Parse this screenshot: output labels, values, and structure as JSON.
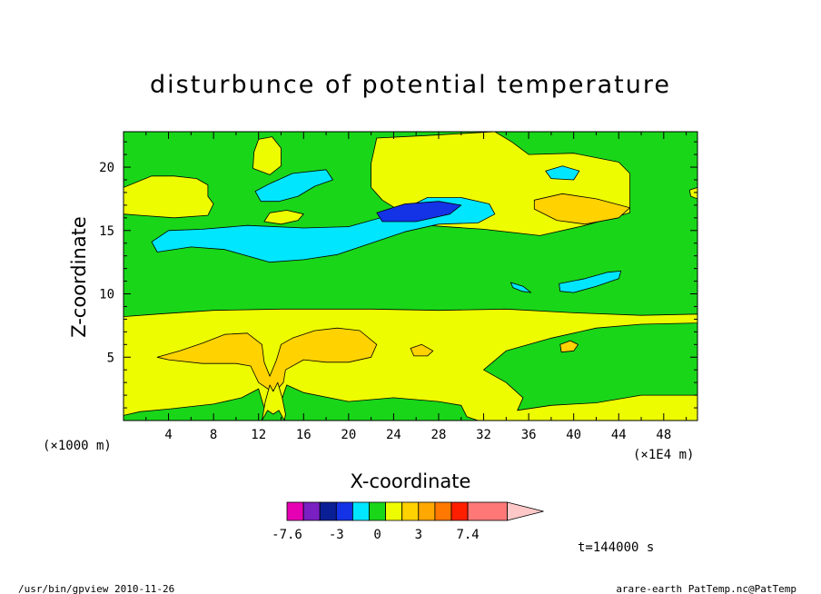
{
  "chart_data": {
    "type": "heatmap",
    "title": "disturbunce of potential temperature",
    "xlabel": "X-coordinate",
    "ylabel": "Z-coordinate",
    "x_unit": "(×1E4 m)",
    "y_unit": "(×1000 m)",
    "xlim": [
      0,
      51
    ],
    "ylim": [
      0,
      22.8
    ],
    "x_ticks": [
      4,
      8,
      12,
      16,
      20,
      24,
      28,
      32,
      36,
      40,
      44,
      48
    ],
    "y_ticks": [
      5,
      10,
      15,
      20
    ],
    "time_label": "t=144000 s",
    "colorbar": {
      "labels": [
        "-7.6",
        "-3",
        "0",
        "3",
        "7.4"
      ],
      "label_values": [
        -7.6,
        -3,
        0,
        3,
        7.4
      ],
      "levels": [
        -7.6,
        -5.4,
        -4.2,
        -3,
        -1.8,
        -0.6,
        0.6,
        1.8,
        3,
        4.2,
        5.4,
        7.4
      ],
      "colors": [
        "#e600b4",
        "#7a1fc2",
        "#0a1e96",
        "#1432e6",
        "#00e6ff",
        "#19d619",
        "#eefc00",
        "#ffd200",
        "#ffa800",
        "#ff7800",
        "#ff1e00",
        "#ff7878",
        "#ffc8c8"
      ]
    },
    "background_color": "#19d619",
    "regions": [
      {
        "level": "0 to 0.6",
        "color": "#eefc00",
        "points": [
          [
            0,
            0.4
          ],
          [
            1.5,
            0.7
          ],
          [
            4,
            0.9
          ],
          [
            8,
            1.3
          ],
          [
            10.5,
            1.8
          ],
          [
            12,
            2.5
          ],
          [
            12.5,
            1
          ],
          [
            13.8,
            1
          ],
          [
            14.5,
            2.8
          ],
          [
            16,
            2.2
          ],
          [
            20,
            1.5
          ],
          [
            24,
            1.8
          ],
          [
            28,
            1.5
          ],
          [
            30,
            1.2
          ],
          [
            30.5,
            0.3
          ],
          [
            31.5,
            0
          ],
          [
            51,
            0
          ],
          [
            51,
            2
          ],
          [
            46,
            2
          ],
          [
            42,
            1.4
          ],
          [
            38,
            1.2
          ],
          [
            35,
            0.8
          ],
          [
            35.5,
            1.8
          ],
          [
            34,
            3
          ],
          [
            32,
            4
          ],
          [
            34,
            5.5
          ],
          [
            38,
            6.5
          ],
          [
            42,
            7.3
          ],
          [
            46,
            7.6
          ],
          [
            51,
            7.7
          ],
          [
            51,
            8.4
          ],
          [
            46,
            8.3
          ],
          [
            40,
            8.5
          ],
          [
            34,
            8.8
          ],
          [
            28,
            8.7
          ],
          [
            22,
            8.8
          ],
          [
            14,
            8.8
          ],
          [
            8,
            8.7
          ],
          [
            3,
            8.4
          ],
          [
            0,
            8.2
          ]
        ]
      },
      {
        "level": "0.6 to 1.8",
        "color": "#ffd200",
        "points": [
          [
            3,
            5
          ],
          [
            5,
            5.5
          ],
          [
            7,
            6.1
          ],
          [
            9,
            6.8
          ],
          [
            11,
            6.9
          ],
          [
            12.3,
            6
          ],
          [
            12.5,
            4.6
          ],
          [
            13,
            3.5
          ],
          [
            13.6,
            4.8
          ],
          [
            14,
            6
          ],
          [
            15,
            6.5
          ],
          [
            17,
            7.1
          ],
          [
            19,
            7.3
          ],
          [
            21,
            7.1
          ],
          [
            22.5,
            6
          ],
          [
            22,
            5
          ],
          [
            20,
            4.6
          ],
          [
            18,
            4.6
          ],
          [
            16,
            4.8
          ],
          [
            14.4,
            4
          ],
          [
            14.2,
            3
          ],
          [
            13.6,
            2.4
          ],
          [
            13,
            2.4
          ],
          [
            12,
            3
          ],
          [
            11.3,
            4.3
          ],
          [
            10,
            4.5
          ],
          [
            7,
            4.5
          ],
          [
            4,
            4.8
          ]
        ]
      },
      {
        "level": "0 to 0.6",
        "color": "#eefc00",
        "points": [
          [
            22.5,
            22.3
          ],
          [
            27,
            22.5
          ],
          [
            33,
            22.8
          ],
          [
            34.5,
            22
          ],
          [
            36,
            21
          ],
          [
            40,
            21.1
          ],
          [
            44,
            20.4
          ],
          [
            45,
            19.5
          ],
          [
            45,
            16.4
          ],
          [
            41,
            15.4
          ],
          [
            37,
            14.6
          ],
          [
            32,
            15.1
          ],
          [
            27,
            15.4
          ],
          [
            25,
            16.3
          ],
          [
            23,
            17.4
          ],
          [
            22,
            18.4
          ],
          [
            22,
            20.3
          ]
        ]
      },
      {
        "level": "0 to 0.6",
        "color": "#eefc00",
        "points": [
          [
            0,
            16.3
          ],
          [
            1.5,
            16.2
          ],
          [
            4.5,
            16
          ],
          [
            7.5,
            16.2
          ],
          [
            8,
            17.1
          ],
          [
            7.5,
            17.7
          ],
          [
            7.5,
            18.6
          ],
          [
            6.5,
            19.1
          ],
          [
            4.5,
            19.3
          ],
          [
            2.5,
            19.3
          ],
          [
            0,
            18.4
          ]
        ]
      },
      {
        "level": "0 to 0.6",
        "color": "#eefc00",
        "points": [
          [
            11.5,
            19.9
          ],
          [
            13,
            19.4
          ],
          [
            14,
            20.1
          ],
          [
            14,
            21.5
          ],
          [
            13.2,
            22.4
          ],
          [
            12,
            22.2
          ],
          [
            11.6,
            21.2
          ]
        ]
      },
      {
        "level": "0 to 0.6",
        "color": "#eefc00",
        "points": [
          [
            50.3,
            18.2
          ],
          [
            51,
            18.4
          ],
          [
            51,
            17.5
          ],
          [
            50.4,
            17.7
          ]
        ]
      },
      {
        "level": "0 to 0.6",
        "color": "#eefc00",
        "points": [
          [
            12.5,
            15.7
          ],
          [
            14,
            15.5
          ],
          [
            15.5,
            15.8
          ],
          [
            16,
            16.3
          ],
          [
            14.5,
            16.6
          ],
          [
            13,
            16.4
          ]
        ]
      },
      {
        "level": "0.6 to 1.8",
        "color": "#ffd200",
        "points": [
          [
            36.5,
            17.4
          ],
          [
            39,
            17.9
          ],
          [
            42,
            17.5
          ],
          [
            45,
            16.8
          ],
          [
            44,
            16
          ],
          [
            41,
            15.5
          ],
          [
            38.5,
            15.8
          ],
          [
            36.5,
            16.7
          ]
        ]
      },
      {
        "level": "0.6 to 1.8",
        "color": "#ffd200",
        "points": [
          [
            25.5,
            5.7
          ],
          [
            26.5,
            6
          ],
          [
            27.5,
            5.5
          ],
          [
            27,
            5.1
          ],
          [
            25.8,
            5.1
          ]
        ]
      },
      {
        "level": "0.6 to 1.8",
        "color": "#ffd200",
        "points": [
          [
            38.8,
            6
          ],
          [
            39.7,
            6.3
          ],
          [
            40.4,
            6
          ],
          [
            40,
            5.5
          ],
          [
            38.9,
            5.4
          ]
        ]
      },
      {
        "level": "-1.8 to -0.6",
        "color": "#00e6ff",
        "points": [
          [
            2.5,
            14.1
          ],
          [
            4,
            15
          ],
          [
            7,
            15.1
          ],
          [
            11,
            15.4
          ],
          [
            16,
            15.2
          ],
          [
            20,
            15.3
          ],
          [
            24,
            16.3
          ],
          [
            27,
            17.6
          ],
          [
            30,
            17.6
          ],
          [
            32.5,
            17.1
          ],
          [
            33,
            16.3
          ],
          [
            31.5,
            15.6
          ],
          [
            28,
            15.5
          ],
          [
            25,
            14.9
          ],
          [
            22,
            14
          ],
          [
            19,
            13.1
          ],
          [
            16,
            12.7
          ],
          [
            13,
            12.5
          ],
          [
            9,
            13.5
          ],
          [
            6,
            13.7
          ],
          [
            3,
            13.3
          ]
        ]
      },
      {
        "level": "-1.8 to -0.6",
        "color": "#00e6ff",
        "points": [
          [
            11.7,
            18.1
          ],
          [
            13,
            18.7
          ],
          [
            15,
            19.5
          ],
          [
            18,
            19.8
          ],
          [
            18.6,
            19
          ],
          [
            17,
            18.5
          ],
          [
            15.5,
            17.7
          ],
          [
            13.8,
            17.3
          ],
          [
            12.2,
            17.3
          ]
        ]
      },
      {
        "level": "-1.8 to -0.6",
        "color": "#00e6ff",
        "points": [
          [
            37.5,
            19.7
          ],
          [
            39,
            20.1
          ],
          [
            40.5,
            19.7
          ],
          [
            40,
            19
          ],
          [
            38,
            19.1
          ]
        ]
      },
      {
        "level": "-1.8 to -0.6",
        "color": "#00e6ff",
        "points": [
          [
            38.7,
            10.8
          ],
          [
            41,
            11.2
          ],
          [
            43,
            11.7
          ],
          [
            44.2,
            11.8
          ],
          [
            44,
            11.2
          ],
          [
            42,
            10.6
          ],
          [
            40,
            10.1
          ],
          [
            38.8,
            10.2
          ]
        ]
      },
      {
        "level": "-1.8 to -0.6",
        "color": "#00e6ff",
        "points": [
          [
            34.4,
            10.9
          ],
          [
            35.5,
            10.6
          ],
          [
            36.2,
            10.1
          ],
          [
            35.4,
            10.2
          ],
          [
            34.6,
            10.5
          ]
        ]
      },
      {
        "level": "-4.2 to -3",
        "color": "#1432e6",
        "points": [
          [
            22.5,
            16.4
          ],
          [
            25,
            17.1
          ],
          [
            28,
            17.3
          ],
          [
            30,
            17
          ],
          [
            29,
            16.3
          ],
          [
            26,
            15.7
          ],
          [
            23,
            15.7
          ]
        ]
      },
      {
        "level": "0 to 0.6",
        "color": "#eefc00",
        "points": [
          [
            12.3,
            0
          ],
          [
            12.6,
            1.5
          ],
          [
            13,
            2.8
          ],
          [
            13.3,
            2.3
          ],
          [
            13.7,
            3
          ],
          [
            14.1,
            1.8
          ],
          [
            14.4,
            0.5
          ],
          [
            14.3,
            0
          ],
          [
            13.8,
            0.8
          ],
          [
            13.3,
            0.5
          ],
          [
            12.8,
            0.8
          ]
        ]
      }
    ]
  },
  "footer": {
    "left": "/usr/bin/gpview  2010-11-26",
    "right": "arare-earth_PatTemp.nc@PatTemp"
  }
}
